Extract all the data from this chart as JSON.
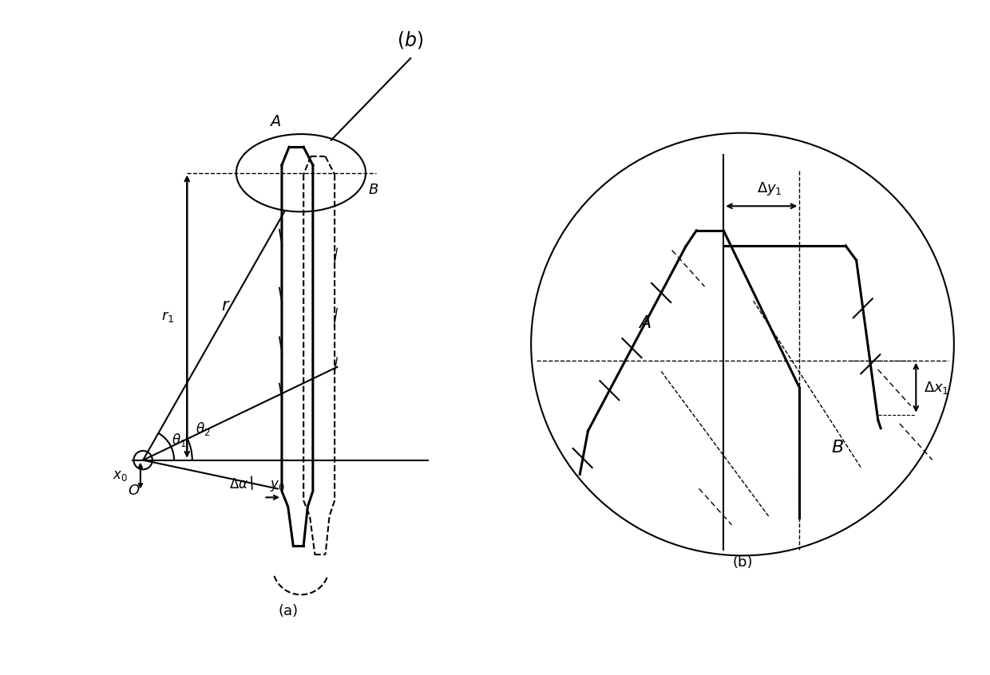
{
  "fig_width": 12.4,
  "fig_height": 8.46,
  "bg_color": "#ffffff",
  "lw": 1.5,
  "lw_thick": 2.2,
  "label_a": "(a)",
  "label_b": "(b)"
}
